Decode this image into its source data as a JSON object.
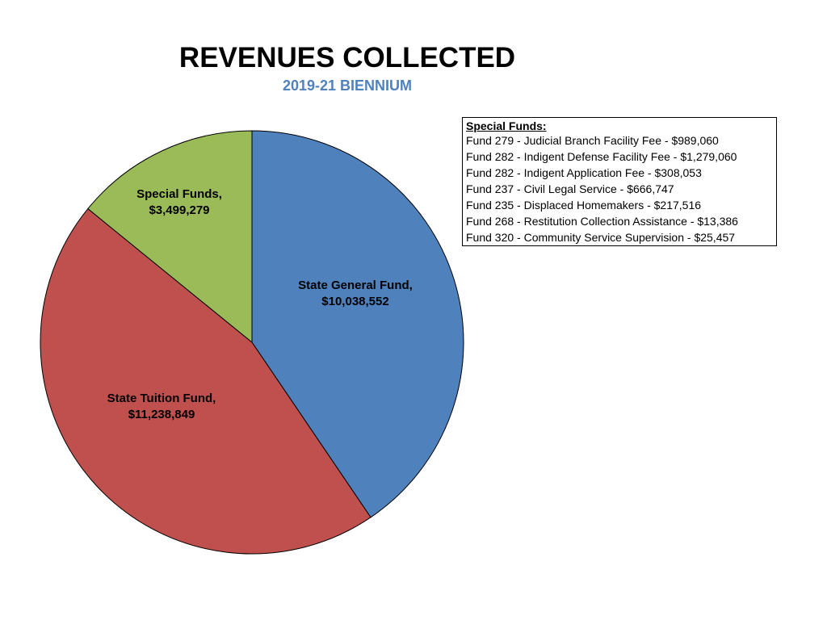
{
  "chart_data": {
    "type": "pie",
    "title": "REVENUES COLLECTED",
    "subtitle": "2019-21 BIENNIUM",
    "slices": [
      {
        "label": "State General Fund,",
        "value_text": "$10,038,552",
        "value": 10038552,
        "color": "#4f81bd"
      },
      {
        "label": "State Tuition Fund,",
        "value_text": "$11,238,849",
        "value": 11238849,
        "color": "#c0504d"
      },
      {
        "label": "Special Funds,",
        "value_text": "$3,499,279",
        "value": 3499279,
        "color": "#9bbb59"
      }
    ]
  },
  "legend": {
    "heading": "Special Funds:",
    "items": [
      "Fund 279 - Judicial Branch Facility Fee - $989,060",
      "Fund 282 - Indigent Defense Facility Fee - $1,279,060",
      "Fund 282 - Indigent Application Fee - $308,053",
      "Fund 237 - Civil Legal Service - $666,747",
      "Fund 235 - Displaced Homemakers - $217,516",
      "Fund 268 - Restitution Collection Assistance - $13,386",
      "Fund 320 - Community Service Supervision - $25,457"
    ]
  }
}
